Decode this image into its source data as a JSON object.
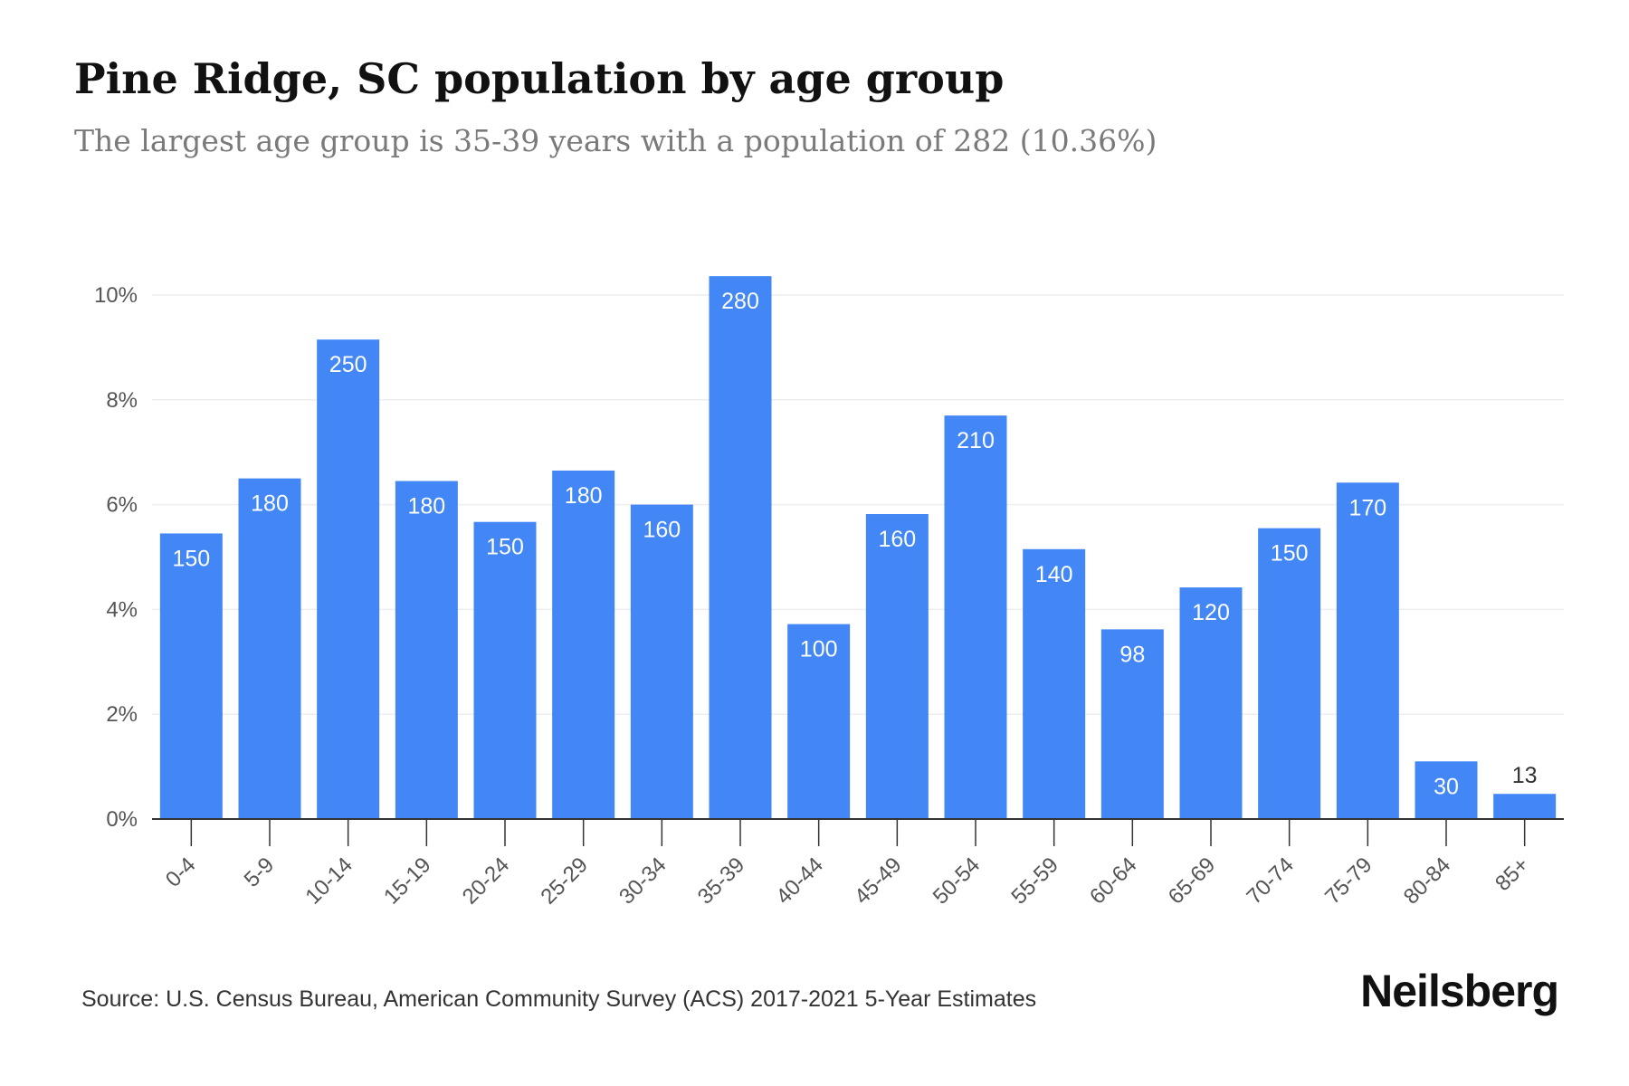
{
  "header": {
    "title": "Pine Ridge, SC population by age group",
    "subtitle": "The largest age group is 35-39 years with a population of 282 (10.36%)"
  },
  "footer": {
    "source": "Source: U.S. Census Bureau, American Community Survey (ACS) 2017-2021 5-Year Estimates",
    "brand": "Neilsberg"
  },
  "colors": {
    "bar": "#4287f5",
    "bar_label": "#ffffff",
    "outside_label": "#333333",
    "axis": "#333333",
    "tick_label": "#555555",
    "grid": "#eeeeee"
  },
  "chart_data": {
    "type": "bar",
    "categories": [
      "0-4",
      "5-9",
      "10-14",
      "15-19",
      "20-24",
      "25-29",
      "30-34",
      "35-39",
      "40-44",
      "45-49",
      "50-54",
      "55-59",
      "60-64",
      "65-69",
      "70-74",
      "75-79",
      "80-84",
      "85+"
    ],
    "values": [
      5.45,
      6.5,
      9.15,
      6.45,
      5.67,
      6.65,
      6.0,
      10.36,
      3.72,
      5.82,
      7.7,
      5.15,
      3.62,
      4.42,
      5.55,
      6.42,
      1.1,
      0.48
    ],
    "bar_labels": [
      "150",
      "180",
      "250",
      "180",
      "150",
      "180",
      "160",
      "280",
      "100",
      "160",
      "210",
      "140",
      "98",
      "120",
      "150",
      "170",
      "30",
      "13"
    ],
    "y_ticks": [
      0,
      2,
      4,
      6,
      8,
      10
    ],
    "y_tick_labels": [
      "0%",
      "2%",
      "4%",
      "6%",
      "8%",
      "10%"
    ],
    "ylim": [
      0,
      10.36
    ],
    "grid": true,
    "xlabel": "",
    "ylabel": ""
  }
}
